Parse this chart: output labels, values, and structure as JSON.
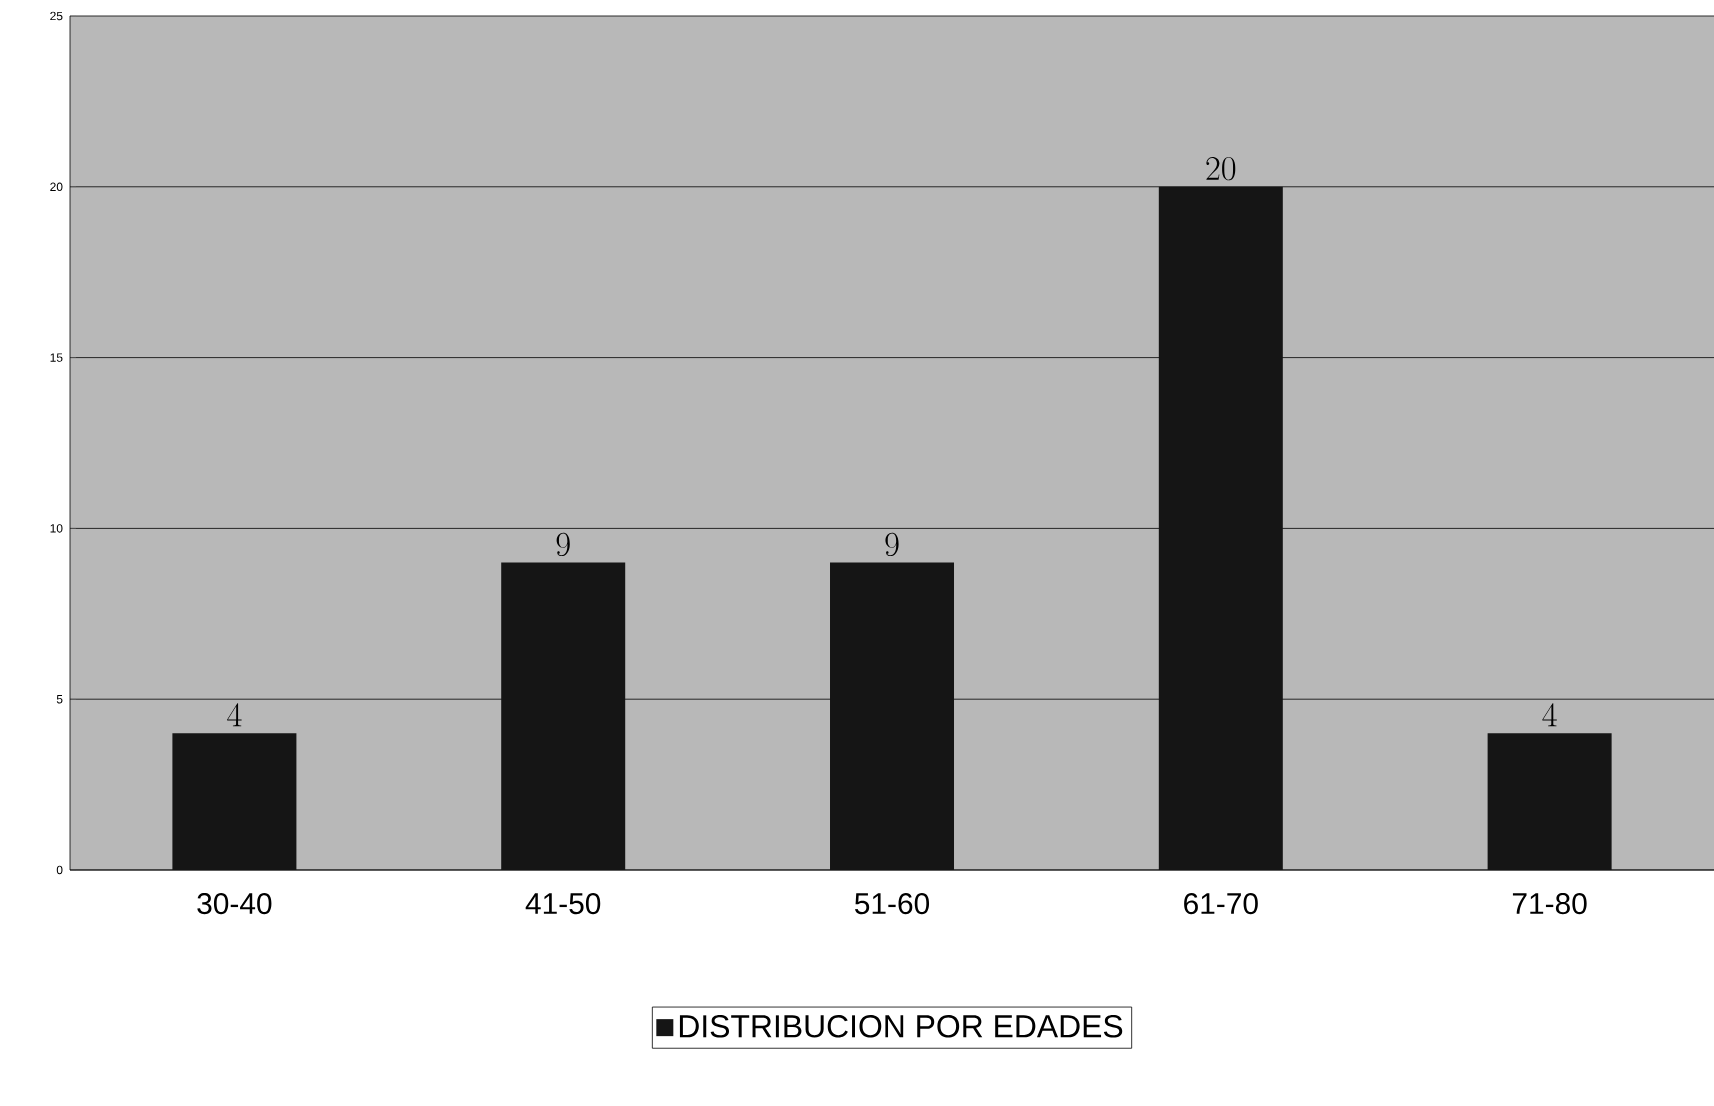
{
  "chart_data": {
    "type": "bar",
    "categories": [
      "30-40",
      "41-50",
      "51-60",
      "61-70",
      "71-80"
    ],
    "series": [
      {
        "name": "DISTRIBUCION POR EDADES",
        "color": "#151515",
        "values": [
          4,
          9,
          9,
          20,
          4
        ]
      }
    ],
    "ylim": [
      0,
      25
    ],
    "yticks": [
      0,
      5,
      10,
      15,
      20,
      25
    ],
    "grid": "y",
    "legend": "bottom",
    "data_labels": true
  }
}
